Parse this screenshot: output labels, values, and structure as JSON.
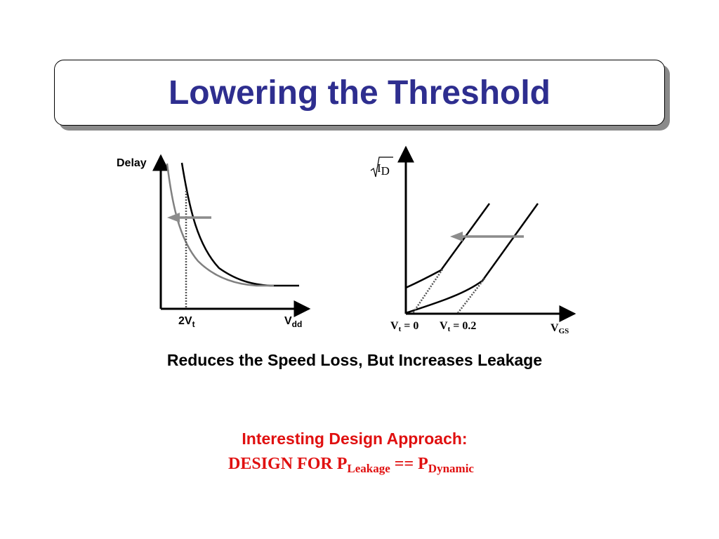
{
  "slide": {
    "title": "Lowering the Threshold",
    "caption": "Reduces the Speed Loss, But Increases Leakage",
    "approach_label": "Interesting Design Approach:",
    "design_rule": {
      "prefix": "DESIGN FOR P",
      "sub1": "Leakage",
      "middle": " == P",
      "sub2": "Dynamic"
    }
  },
  "delay_chart": {
    "ylabel": "Delay",
    "x_tick_main": "2V",
    "x_tick_sub": "t",
    "xlabel_main": "V",
    "xlabel_sub": "dd"
  },
  "id_chart": {
    "ylabel_main": "I",
    "ylabel_sub": "D",
    "tick1_main": "V",
    "tick1_sub": "t",
    "tick1_rest": " = 0",
    "tick2_main": "V",
    "tick2_sub": "t",
    "tick2_rest": " = 0.2",
    "xlabel_main": "V",
    "xlabel_sub": "GS"
  },
  "colors": {
    "title": "#2e2e8f",
    "accent_red": "#e01010",
    "gray_curve": "#808080",
    "arrow_gray": "#8c8c8c"
  }
}
